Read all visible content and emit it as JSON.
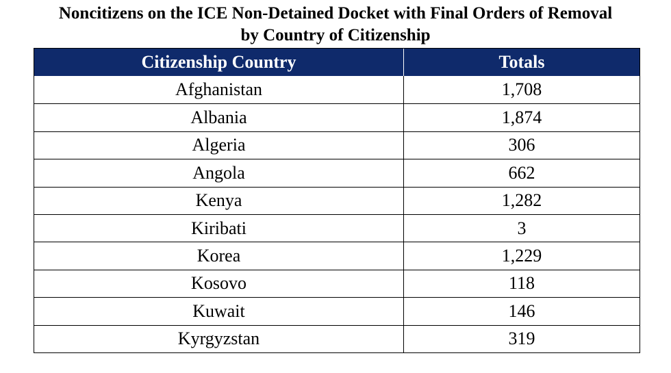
{
  "title": {
    "line1": "Noncitizens on the ICE Non-Detained Docket with Final Orders of Removal",
    "line2": "by Country of Citizenship"
  },
  "table": {
    "headers": [
      "Citizenship Country",
      "Totals"
    ],
    "rows": [
      {
        "country": "Afghanistan",
        "total": "1,708"
      },
      {
        "country": "Albania",
        "total": "1,874"
      },
      {
        "country": "Algeria",
        "total": "306"
      },
      {
        "country": "Angola",
        "total": "662"
      },
      {
        "country": "Kenya",
        "total": "1,282"
      },
      {
        "country": "Kiribati",
        "total": "3"
      },
      {
        "country": "Korea",
        "total": "1,229"
      },
      {
        "country": "Kosovo",
        "total": "118"
      },
      {
        "country": "Kuwait",
        "total": "146"
      },
      {
        "country": "Kyrgyzstan",
        "total": "319"
      }
    ]
  },
  "colors": {
    "header_background": "#0f2a6b",
    "header_text": "#ffffff",
    "border": "#000000"
  }
}
